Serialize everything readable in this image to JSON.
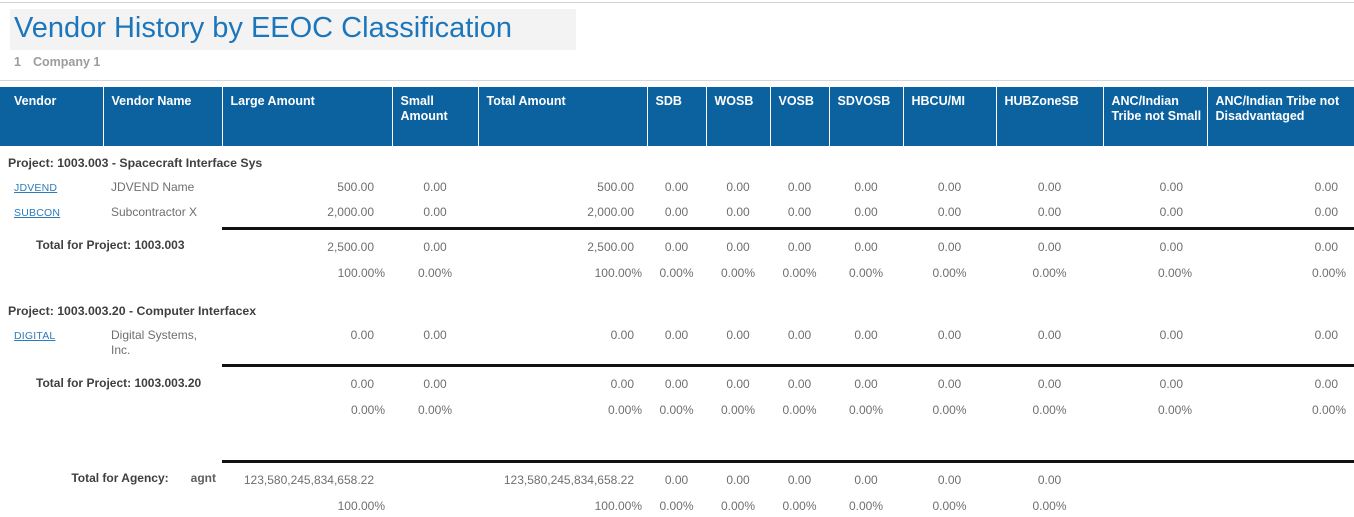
{
  "title": "Vendor History by EEOC Classification",
  "company": {
    "index": "1",
    "name": "Company 1"
  },
  "colors": {
    "header_bg": "#0b629f",
    "title_blue": "#1c76bb",
    "link_blue": "#2a7cbd",
    "rule_black": "#111111"
  },
  "table": {
    "columns": [
      "Vendor",
      "Vendor Name",
      "Large Amount",
      "Small Amount",
      "Total Amount",
      "SDB",
      "WOSB",
      "VOSB",
      "SDVOSB",
      "HBCU/MI",
      "HUBZoneSB",
      "ANC/Indian Tribe not Small",
      "ANC/Indian Tribe not Disadvantaged"
    ],
    "groups": [
      {
        "project_label": "Project: 1003.003 - Spacecraft Interface Sys",
        "vendors": [
          {
            "code": "JDVEND",
            "name": "JDVEND Name",
            "values": [
              "500.00",
              "0.00",
              "500.00",
              "0.00",
              "0.00",
              "0.00",
              "0.00",
              "0.00",
              "0.00",
              "0.00",
              "0.00"
            ]
          },
          {
            "code": "SUBCON",
            "name": "Subcontractor X",
            "values": [
              "2,000.00",
              "0.00",
              "2,000.00",
              "0.00",
              "0.00",
              "0.00",
              "0.00",
              "0.00",
              "0.00",
              "0.00",
              "0.00"
            ]
          }
        ],
        "total_label": "Total for Project: 1003.003",
        "total_values": [
          "2,500.00",
          "0.00",
          "2,500.00",
          "0.00",
          "0.00",
          "0.00",
          "0.00",
          "0.00",
          "0.00",
          "0.00",
          "0.00"
        ],
        "total_percents": [
          "100.00%",
          "0.00%",
          "100.00%",
          "0.00%",
          "0.00%",
          "0.00%",
          "0.00%",
          "0.00%",
          "0.00%",
          "0.00%",
          "0.00%"
        ]
      },
      {
        "project_label": "Project: 1003.003.20 - Computer Interfacex",
        "vendors": [
          {
            "code": "DIGITAL",
            "name": "Digital Systems,\nInc.",
            "values": [
              "0.00",
              "0.00",
              "0.00",
              "0.00",
              "0.00",
              "0.00",
              "0.00",
              "0.00",
              "0.00",
              "0.00",
              "0.00"
            ]
          }
        ],
        "total_label": "Total for Project: 1003.003.20",
        "total_values": [
          "0.00",
          "0.00",
          "0.00",
          "0.00",
          "0.00",
          "0.00",
          "0.00",
          "0.00",
          "0.00",
          "0.00",
          "0.00"
        ],
        "total_percents": [
          "0.00%",
          "0.00%",
          "0.00%",
          "0.00%",
          "0.00%",
          "0.00%",
          "0.00%",
          "0.00%",
          "0.00%",
          "0.00%",
          "0.00%"
        ]
      }
    ],
    "agency_total": {
      "label": "Total for Agency:",
      "agency_code": "agnt",
      "values": [
        "123,580,245,834,658.22",
        "",
        "123,580,245,834,658.22",
        "0.00",
        "0.00",
        "0.00",
        "0.00",
        "0.00",
        "0.00",
        "",
        ""
      ],
      "percents": [
        "100.00%",
        "",
        "100.00%",
        "0.00%",
        "0.00%",
        "0.00%",
        "0.00%",
        "0.00%",
        "0.00%",
        "",
        ""
      ]
    }
  }
}
